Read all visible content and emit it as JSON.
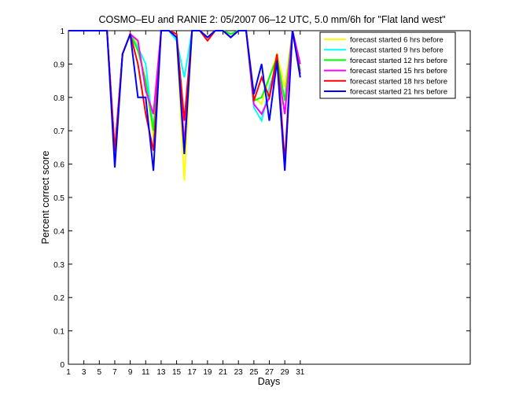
{
  "chart_data": {
    "type": "line",
    "title": "COSMO–EU and RANIE 2: 05/2007 06–12 UTC, 5.0 mm/6h for \"Flat land west\"",
    "xlabel": "Days",
    "ylabel": "Percent correct score",
    "xlim": [
      1,
      53
    ],
    "ylim": [
      0,
      1
    ],
    "x_ticks": [
      1,
      3,
      5,
      7,
      9,
      11,
      13,
      15,
      17,
      19,
      21,
      23,
      25,
      27,
      29,
      31
    ],
    "y_ticks": [
      0,
      0.1,
      0.2,
      0.3,
      0.4,
      0.5,
      0.6,
      0.7,
      0.8,
      0.9,
      1
    ],
    "y_tick_labels": [
      "0",
      "0.1",
      "0.2",
      "0.3",
      "0.4",
      "0.5",
      "0.6",
      "0.7",
      "0.8",
      "0.9",
      "1"
    ],
    "legend_position": "top-right",
    "grid": false,
    "x": [
      1,
      2,
      3,
      4,
      5,
      6,
      7,
      8,
      9,
      10,
      11,
      12,
      13,
      14,
      15,
      16,
      17,
      18,
      19,
      20,
      21,
      22,
      23,
      24,
      25,
      26,
      27,
      28,
      29,
      30,
      31
    ],
    "series": [
      {
        "name": "forecast started 6 hrs before",
        "color": "#ffff00",
        "values": [
          1,
          1,
          1,
          1,
          1,
          1,
          0.62,
          0.93,
          0.99,
          0.96,
          0.85,
          0.68,
          1,
          1,
          0.97,
          0.55,
          1,
          1,
          0.98,
          1,
          1,
          0.99,
          1,
          1,
          0.8,
          0.78,
          0.86,
          0.93,
          0.83,
          1,
          0.88
        ]
      },
      {
        "name": "forecast started 9 hrs before",
        "color": "#00ffff",
        "values": [
          1,
          1,
          1,
          1,
          1,
          1,
          0.63,
          0.93,
          0.99,
          0.95,
          0.9,
          0.7,
          1,
          1,
          0.97,
          0.86,
          1,
          1,
          0.98,
          1,
          1,
          0.99,
          1,
          1,
          0.77,
          0.73,
          0.83,
          0.9,
          0.75,
          1,
          0.9
        ]
      },
      {
        "name": "forecast started 12 hrs before",
        "color": "#00ff00",
        "values": [
          1,
          1,
          1,
          1,
          1,
          1,
          0.62,
          0.93,
          0.99,
          0.94,
          0.85,
          0.7,
          1,
          1,
          0.99,
          0.65,
          1,
          1,
          0.98,
          1,
          1,
          0.99,
          1,
          1,
          0.79,
          0.8,
          0.86,
          0.92,
          0.79,
          1,
          0.88
        ]
      },
      {
        "name": "forecast started 15 hrs before",
        "color": "#ff00ff",
        "values": [
          1,
          1,
          1,
          1,
          1,
          1,
          0.64,
          0.93,
          0.99,
          0.97,
          0.82,
          0.75,
          1,
          1,
          0.99,
          0.66,
          1,
          1,
          0.98,
          1,
          1,
          0.98,
          1,
          1,
          0.78,
          0.75,
          0.8,
          0.9,
          0.75,
          1,
          0.9
        ]
      },
      {
        "name": "forecast started 18 hrs before",
        "color": "#ff0000",
        "values": [
          1,
          1,
          1,
          1,
          1,
          1,
          0.64,
          0.93,
          0.99,
          0.9,
          0.75,
          0.64,
          1,
          1,
          0.99,
          0.73,
          1,
          1,
          0.97,
          1,
          1,
          0.98,
          1,
          1,
          0.79,
          0.86,
          0.8,
          0.93,
          0.61,
          1,
          0.87
        ]
      },
      {
        "name": "forecast started 21 hrs before",
        "color": "#0000ff",
        "values": [
          1,
          1,
          1,
          1,
          1,
          1,
          0.59,
          0.93,
          0.99,
          0.8,
          0.8,
          0.58,
          1,
          1,
          0.98,
          0.63,
          1,
          1,
          0.98,
          1,
          1,
          0.98,
          1,
          1,
          0.81,
          0.9,
          0.73,
          0.91,
          0.58,
          1,
          0.86
        ]
      }
    ]
  }
}
